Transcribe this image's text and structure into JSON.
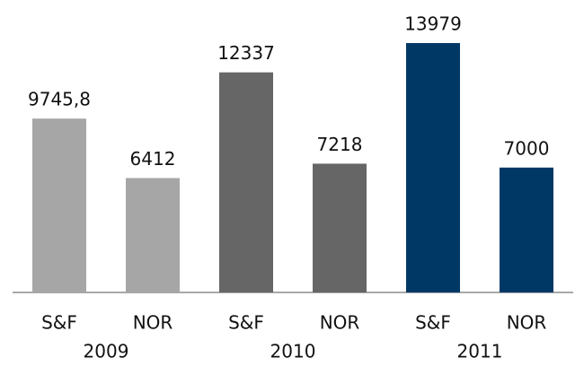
{
  "chart_data": {
    "type": "bar",
    "categories": [
      "S&F",
      "NOR",
      "S&F",
      "NOR",
      "S&F",
      "NOR"
    ],
    "groups": [
      "2009",
      "2010",
      "2011"
    ],
    "values": [
      9745.8,
      6412,
      12337,
      7218,
      13979,
      7000
    ],
    "value_labels": [
      "9745,8",
      "6412",
      "12337",
      "7218",
      "13979",
      "7000"
    ],
    "colors": [
      "#a6a6a6",
      "#a6a6a6",
      "#666666",
      "#666666",
      "#003865",
      "#003865"
    ],
    "ylim": [
      0,
      14000
    ]
  }
}
